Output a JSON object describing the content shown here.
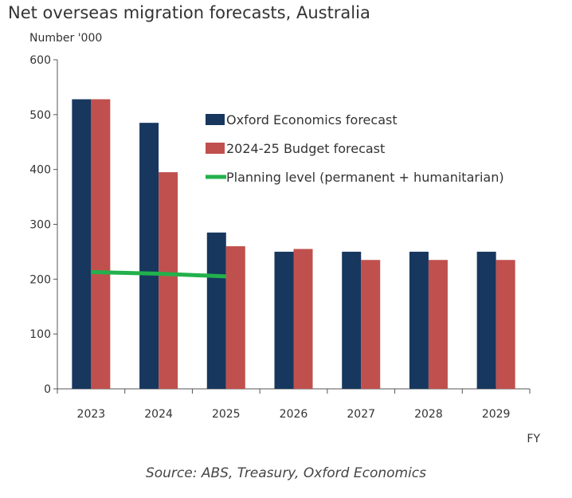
{
  "chart_data": {
    "type": "bar",
    "title": "Net overseas migration forecasts, Australia",
    "ylabel": "Number '000",
    "xlabel": "FY",
    "source": "Source: ABS, Treasury, Oxford Economics",
    "categories": [
      "2023",
      "2024",
      "2025",
      "2026",
      "2027",
      "2028",
      "2029"
    ],
    "ylim": [
      0,
      600
    ],
    "yticks": [
      0,
      100,
      200,
      300,
      400,
      500,
      600
    ],
    "grid": false,
    "legend_position": "top-right",
    "series": [
      {
        "name": "Oxford Economics forecast",
        "type": "bar",
        "color": "#17375e",
        "values": [
          528,
          485,
          285,
          250,
          250,
          250,
          250
        ]
      },
      {
        "name": "2024-25 Budget forecast",
        "type": "bar",
        "color": "#c0504d",
        "values": [
          528,
          395,
          260,
          255,
          235,
          235,
          235
        ]
      },
      {
        "name": "Planning level (permanent + humanitarian)",
        "type": "line",
        "color": "#22b14c",
        "values": [
          213,
          210,
          205,
          null,
          null,
          null,
          null
        ]
      }
    ]
  }
}
